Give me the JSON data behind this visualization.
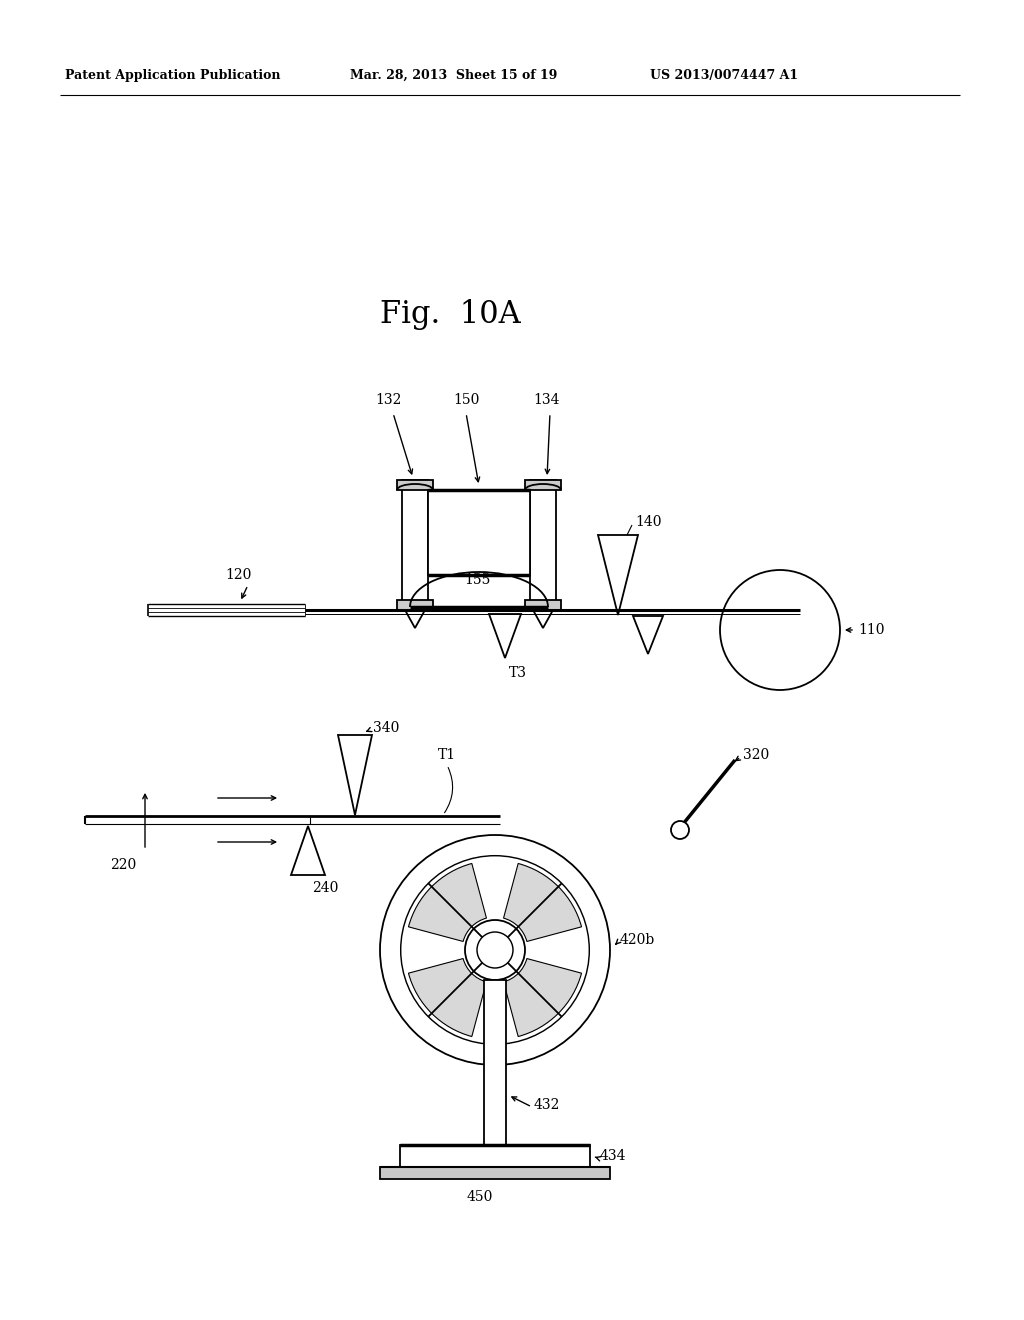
{
  "title": "Fig.  10A",
  "header_left": "Patent Application Publication",
  "header_mid": "Mar. 28, 2013  Sheet 15 of 19",
  "header_right": "US 2013/0074447 A1",
  "background": "#ffffff",
  "line_color": "#000000"
}
